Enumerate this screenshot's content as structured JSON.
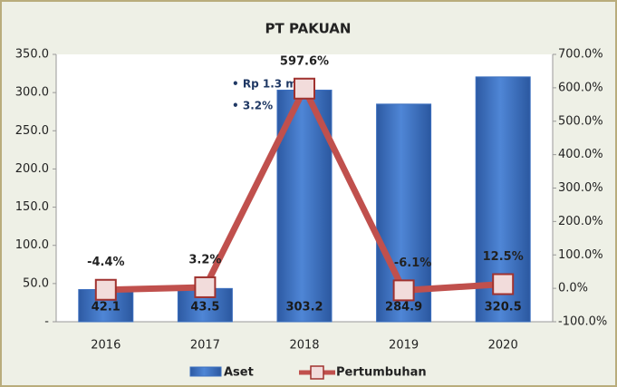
{
  "chart_data": {
    "type": "bar",
    "title": "PT PAKUAN",
    "categories": [
      "2016",
      "2017",
      "2018",
      "2019",
      "2020"
    ],
    "series": [
      {
        "name": "Aset",
        "color": "#3c6fbf",
        "values": [
          42.1,
          43.5,
          303.2,
          284.9,
          320.5
        ]
      },
      {
        "name": "Pertumbuhan",
        "color": "#c0504d",
        "axis": "y2",
        "values": [
          -4.4,
          3.2,
          597.6,
          -6.1,
          12.5
        ],
        "value_labels": [
          "-4.4%",
          "3.2%",
          "597.6%",
          "-6.1%",
          "12.5%"
        ]
      }
    ],
    "ylim": [
      0,
      350
    ],
    "yticks": [
      {
        "value": 0,
        "label": "-"
      },
      {
        "value": 50,
        "label": "50.0"
      },
      {
        "value": 100,
        "label": "100.0"
      },
      {
        "value": 150,
        "label": "150.0"
      },
      {
        "value": 200,
        "label": "200.0"
      },
      {
        "value": 250,
        "label": "250.0"
      },
      {
        "value": 300,
        "label": "300.0"
      },
      {
        "value": 350,
        "label": "350.0"
      }
    ],
    "y2lim": [
      -100,
      700
    ],
    "y2ticks": [
      {
        "value": -100,
        "label": "-100.0%"
      },
      {
        "value": 0,
        "label": "0.0%"
      },
      {
        "value": 100,
        "label": "100.0%"
      },
      {
        "value": 200,
        "label": "200.0%"
      },
      {
        "value": 300,
        "label": "300.0%"
      },
      {
        "value": 400,
        "label": "400.0%"
      },
      {
        "value": 500,
        "label": "500.0%"
      },
      {
        "value": 600,
        "label": "600.0%"
      },
      {
        "value": 700,
        "label": "700.0%"
      }
    ],
    "annotations": [
      "• Rp 1.3 m",
      "• 3.2%"
    ],
    "grid": false,
    "legend": "bottom"
  }
}
